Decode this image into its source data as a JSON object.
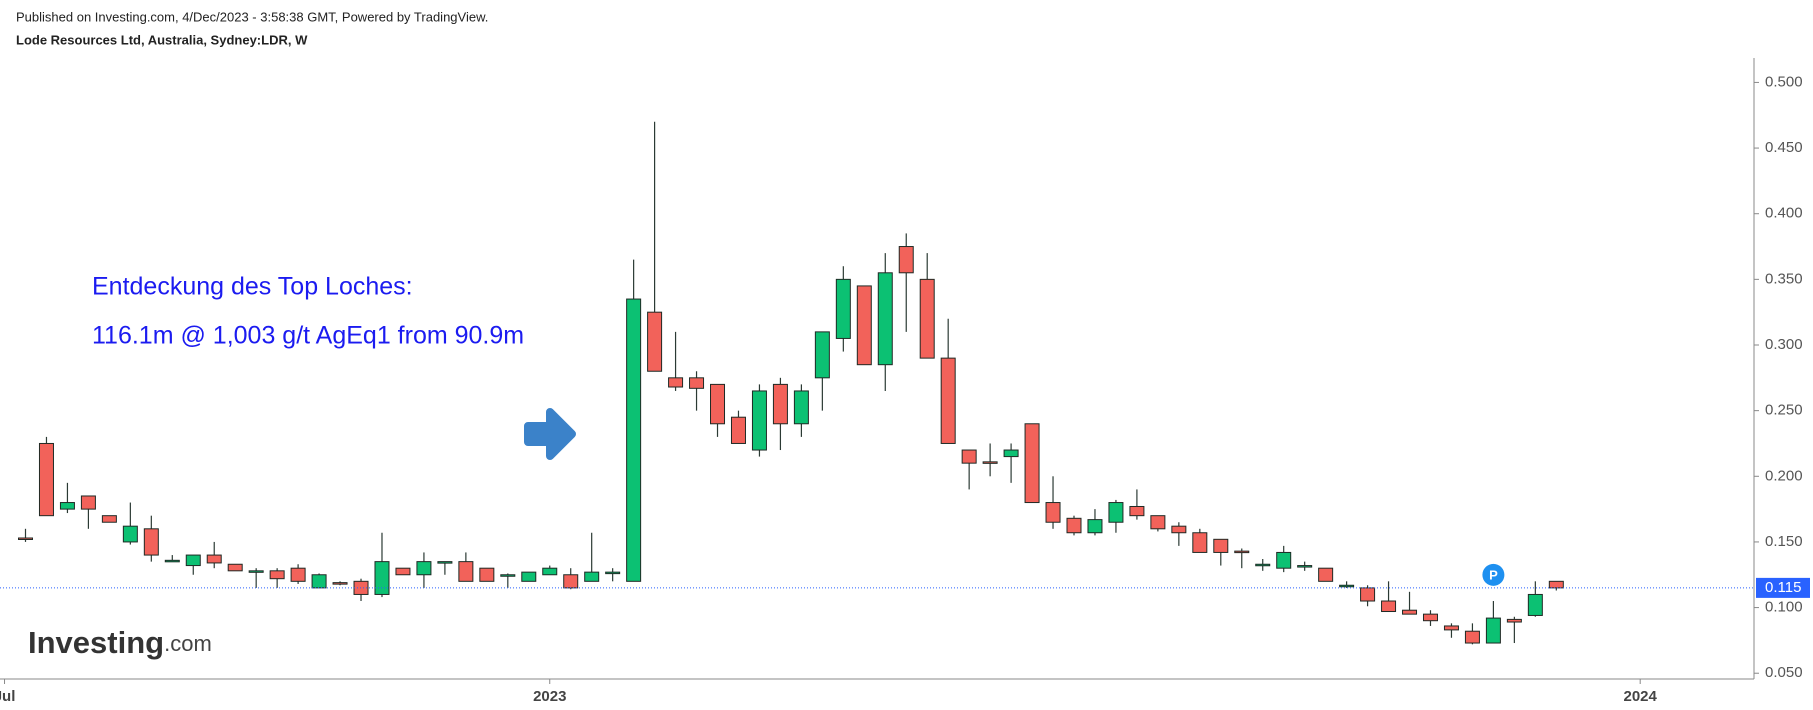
{
  "header": {
    "published": "Published on Investing.com, 4/Dec/2023 - 3:58:38 GMT, Powered by TradingView.",
    "instrument": "Lode Resources Ltd, Australia, Sydney:LDR, W"
  },
  "logo": {
    "name": "Investing",
    "suffix": ".com"
  },
  "chart_data": {
    "type": "candlestick",
    "annotations": [
      "Entdeckung des Top Loches:",
      "116.1m @ 1,003 g/t AgEq1 from 90.9m"
    ],
    "series": [
      {
        "up_color": "#0cc173",
        "down_color": "#f2625a",
        "open": [
          0.153,
          0.225,
          0.175,
          0.185,
          0.17,
          0.15,
          0.16,
          0.135,
          0.132,
          0.14,
          0.133,
          0.127,
          0.128,
          0.13,
          0.115,
          0.119,
          0.12,
          0.11,
          0.13,
          0.125,
          0.134,
          0.135,
          0.13,
          0.125,
          0.12,
          0.125,
          0.125,
          0.12,
          0.127,
          0.12,
          0.325,
          0.275,
          0.275,
          0.27,
          0.245,
          0.22,
          0.27,
          0.24,
          0.275,
          0.305,
          0.345,
          0.285,
          0.375,
          0.35,
          0.29,
          0.22,
          0.211,
          0.215,
          0.24,
          0.18,
          0.168,
          0.157,
          0.165,
          0.177,
          0.17,
          0.162,
          0.157,
          0.152,
          0.143,
          0.132,
          0.13,
          0.131,
          0.13,
          0.117,
          0.115,
          0.105,
          0.098,
          0.095,
          0.086,
          0.082,
          0.073,
          0.091,
          0.094,
          0.12
        ],
        "high": [
          0.16,
          0.23,
          0.195,
          0.185,
          0.17,
          0.18,
          0.17,
          0.14,
          0.14,
          0.15,
          0.133,
          0.13,
          0.13,
          0.133,
          0.126,
          0.12,
          0.122,
          0.157,
          0.13,
          0.142,
          0.135,
          0.142,
          0.13,
          0.126,
          0.127,
          0.132,
          0.13,
          0.157,
          0.13,
          0.365,
          0.47,
          0.31,
          0.28,
          0.27,
          0.25,
          0.27,
          0.275,
          0.27,
          0.31,
          0.36,
          0.345,
          0.37,
          0.385,
          0.37,
          0.32,
          0.22,
          0.225,
          0.225,
          0.24,
          0.2,
          0.17,
          0.175,
          0.182,
          0.19,
          0.17,
          0.165,
          0.16,
          0.152,
          0.145,
          0.137,
          0.147,
          0.135,
          0.13,
          0.12,
          0.117,
          0.12,
          0.112,
          0.098,
          0.088,
          0.088,
          0.105,
          0.093,
          0.12,
          0.12
        ],
        "low": [
          0.15,
          0.17,
          0.172,
          0.16,
          0.165,
          0.148,
          0.135,
          0.135,
          0.125,
          0.13,
          0.128,
          0.115,
          0.115,
          0.118,
          0.115,
          0.117,
          0.105,
          0.108,
          0.125,
          0.115,
          0.125,
          0.12,
          0.12,
          0.115,
          0.12,
          0.125,
          0.114,
          0.12,
          0.12,
          0.12,
          0.28,
          0.265,
          0.25,
          0.23,
          0.225,
          0.215,
          0.22,
          0.23,
          0.25,
          0.295,
          0.285,
          0.265,
          0.31,
          0.29,
          0.225,
          0.19,
          0.2,
          0.195,
          0.18,
          0.16,
          0.155,
          0.155,
          0.157,
          0.167,
          0.158,
          0.147,
          0.142,
          0.132,
          0.13,
          0.128,
          0.127,
          0.128,
          0.12,
          0.115,
          0.101,
          0.097,
          0.095,
          0.086,
          0.077,
          0.072,
          0.073,
          0.073,
          0.093,
          0.113
        ],
        "close": [
          0.152,
          0.17,
          0.18,
          0.175,
          0.165,
          0.162,
          0.14,
          0.136,
          0.14,
          0.134,
          0.128,
          0.128,
          0.122,
          0.12,
          0.125,
          0.118,
          0.11,
          0.135,
          0.125,
          0.135,
          0.135,
          0.12,
          0.12,
          0.125,
          0.127,
          0.13,
          0.115,
          0.127,
          0.127,
          0.335,
          0.28,
          0.268,
          0.267,
          0.24,
          0.225,
          0.265,
          0.24,
          0.265,
          0.31,
          0.35,
          0.285,
          0.355,
          0.355,
          0.29,
          0.225,
          0.21,
          0.21,
          0.22,
          0.18,
          0.165,
          0.157,
          0.167,
          0.18,
          0.17,
          0.16,
          0.157,
          0.142,
          0.142,
          0.142,
          0.133,
          0.142,
          0.132,
          0.12,
          0.117,
          0.105,
          0.097,
          0.095,
          0.09,
          0.083,
          0.073,
          0.092,
          0.089,
          0.11,
          0.115
        ]
      }
    ],
    "last_price": 0.115,
    "marker": {
      "label": "P",
      "index": 70
    },
    "ylim": [
      0.0456,
      0.5186
    ],
    "yticks": [
      {
        "value": 0.05,
        "label": "0.050"
      },
      {
        "value": 0.1,
        "label": "0.100"
      },
      {
        "value": 0.15,
        "label": "0.150"
      },
      {
        "value": 0.2,
        "label": "0.200"
      },
      {
        "value": 0.25,
        "label": "0.250"
      },
      {
        "value": 0.3,
        "label": "0.300"
      },
      {
        "value": 0.35,
        "label": "0.350"
      },
      {
        "value": 0.4,
        "label": "0.400"
      },
      {
        "value": 0.45,
        "label": "0.450"
      },
      {
        "value": 0.5,
        "label": "0.500"
      }
    ],
    "xticks": [
      {
        "value": -1,
        "label": "Jul"
      },
      {
        "value": 25,
        "label": "2023"
      },
      {
        "value": 77,
        "label": "2024"
      }
    ]
  }
}
